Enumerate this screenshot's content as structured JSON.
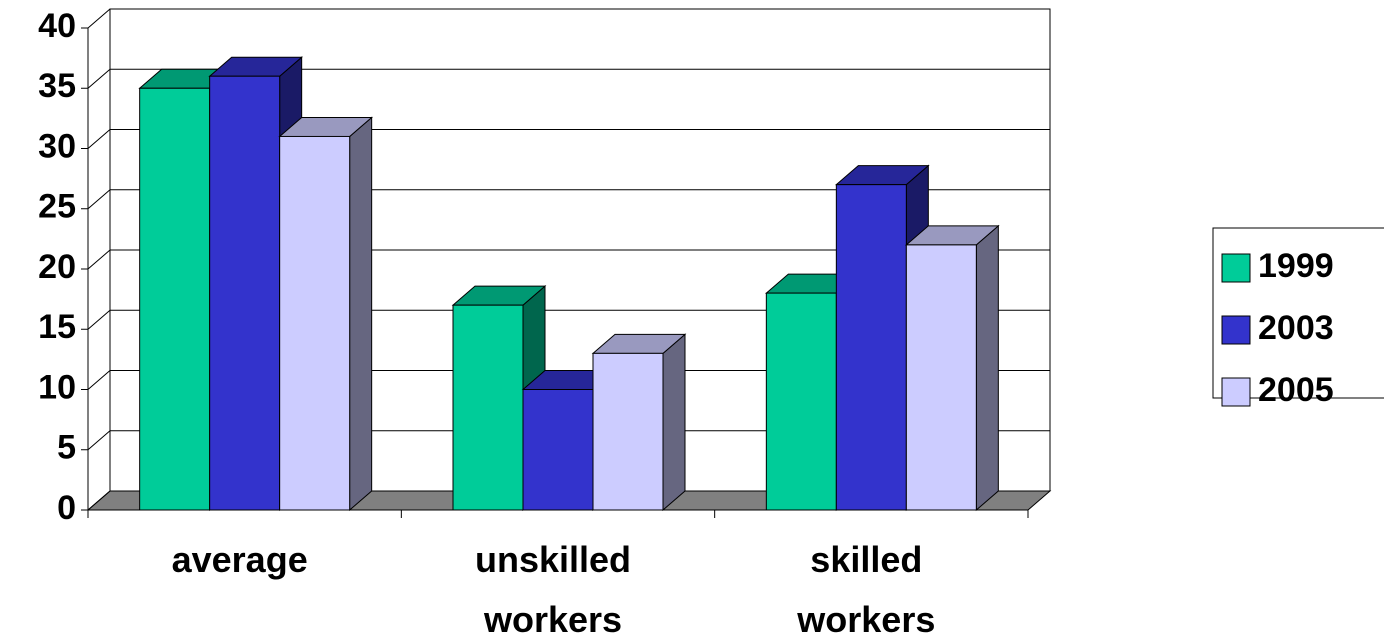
{
  "chart_data": {
    "type": "bar3d",
    "categories": [
      "average",
      "unskilled workers",
      "skilled workers"
    ],
    "series": [
      {
        "name": "1999",
        "color": "#00cc99",
        "values": [
          35,
          17,
          18
        ]
      },
      {
        "name": "2003",
        "color": "#3333cc",
        "values": [
          36,
          10,
          27
        ]
      },
      {
        "name": "2005",
        "color": "#ccccff",
        "values": [
          31,
          13,
          22
        ]
      }
    ],
    "ylim": [
      0,
      40
    ],
    "yticks": [
      0,
      5,
      10,
      15,
      20,
      25,
      30,
      35,
      40
    ],
    "grid": true,
    "legend": "right"
  }
}
